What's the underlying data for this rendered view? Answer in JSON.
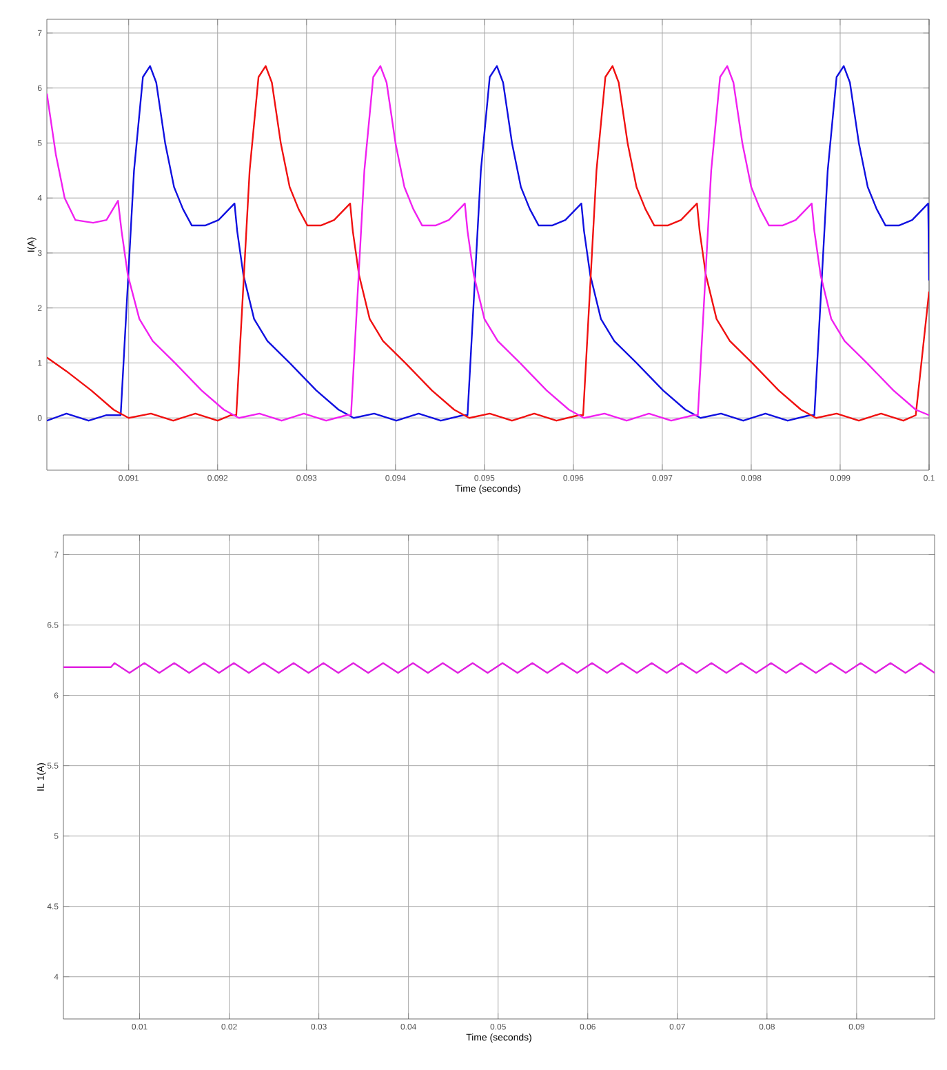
{
  "chart_data": [
    {
      "type": "line",
      "xlabel": "Time (seconds)",
      "ylabel": "I(A)",
      "xlim": [
        0.09008,
        0.1
      ],
      "ylim": [
        -0.95,
        7.25
      ],
      "xticks": [
        0.091,
        0.092,
        0.093,
        0.094,
        0.095,
        0.096,
        0.097,
        0.098,
        0.099,
        0.1
      ],
      "yticks": [
        0,
        1,
        2,
        3,
        4,
        5,
        6,
        7
      ],
      "grid": true,
      "series": [
        {
          "color": "#1010e0",
          "x": [
            0.09008,
            0.0903,
            0.09055,
            0.09075,
            0.09091,
            0.09106,
            0.09116,
            0.09124,
            0.09131,
            0.09141,
            0.09151,
            0.09161,
            0.09171,
            0.09186,
            0.09201,
            0.09219,
            0.09222,
            0.09229,
            0.09241,
            0.09256,
            0.09281,
            0.09311,
            0.09336,
            0.09353,
            0.09376,
            0.09401,
            0.09426,
            0.09451,
            0.09476,
            0.09481,
            0.09496,
            0.09506,
            0.09514,
            0.09521,
            0.09531,
            0.09541,
            0.09551,
            0.09561,
            0.09576,
            0.09591,
            0.09609,
            0.09612,
            0.09619,
            0.09631,
            0.09646,
            0.09671,
            0.09701,
            0.09726,
            0.09743,
            0.09766,
            0.09791,
            0.09816,
            0.09841,
            0.09866,
            0.09871,
            0.09886,
            0.09896,
            0.09904,
            0.09911,
            0.09921,
            0.09931,
            0.09941,
            0.09951,
            0.09966,
            0.09981,
            0.09999,
            0.1
          ],
          "values": [
            -0.05,
            0.08,
            -0.05,
            0.05,
            0.05,
            4.5,
            6.2,
            6.4,
            6.1,
            5.0,
            4.2,
            3.8,
            3.5,
            3.5,
            3.6,
            3.9,
            3.4,
            2.6,
            1.8,
            1.4,
            1.0,
            0.5,
            0.15,
            0.0,
            0.08,
            -0.05,
            0.08,
            -0.05,
            0.05,
            0.05,
            4.5,
            6.2,
            6.4,
            6.1,
            5.0,
            4.2,
            3.8,
            3.5,
            3.5,
            3.6,
            3.9,
            3.4,
            2.6,
            1.8,
            1.4,
            1.0,
            0.5,
            0.15,
            0.0,
            0.08,
            -0.05,
            0.08,
            -0.05,
            0.05,
            0.05,
            4.5,
            6.2,
            6.4,
            6.1,
            5.0,
            4.2,
            3.8,
            3.5,
            3.5,
            3.6,
            3.9,
            2.5
          ]
        },
        {
          "color": "#f01010",
          "x": [
            0.09008,
            0.0903,
            0.09058,
            0.09083,
            0.091,
            0.09125,
            0.0915,
            0.09175,
            0.092,
            0.09215,
            0.09221,
            0.09236,
            0.09246,
            0.09254,
            0.09261,
            0.09271,
            0.09281,
            0.09291,
            0.09301,
            0.09316,
            0.09331,
            0.09349,
            0.09352,
            0.09359,
            0.09371,
            0.09386,
            0.09411,
            0.09441,
            0.09466,
            0.09483,
            0.09506,
            0.09531,
            0.09556,
            0.09581,
            0.09606,
            0.09611,
            0.09626,
            0.09636,
            0.09644,
            0.09651,
            0.09661,
            0.09671,
            0.09681,
            0.09691,
            0.09706,
            0.09721,
            0.09739,
            0.09742,
            0.09749,
            0.09761,
            0.09776,
            0.09801,
            0.09831,
            0.09856,
            0.09873,
            0.09896,
            0.09921,
            0.09946,
            0.09971,
            0.09985,
            0.1
          ],
          "values": [
            1.1,
            0.85,
            0.5,
            0.15,
            0.0,
            0.08,
            -0.05,
            0.08,
            -0.05,
            0.05,
            0.05,
            4.5,
            6.2,
            6.4,
            6.1,
            5.0,
            4.2,
            3.8,
            3.5,
            3.5,
            3.6,
            3.9,
            3.4,
            2.6,
            1.8,
            1.4,
            1.0,
            0.5,
            0.15,
            0.0,
            0.08,
            -0.05,
            0.08,
            -0.05,
            0.05,
            0.05,
            4.5,
            6.2,
            6.4,
            6.1,
            5.0,
            4.2,
            3.8,
            3.5,
            3.5,
            3.6,
            3.9,
            3.4,
            2.6,
            1.8,
            1.4,
            1.0,
            0.5,
            0.15,
            0.0,
            0.08,
            -0.05,
            0.08,
            -0.05,
            0.05,
            2.3
          ]
        },
        {
          "color": "#f020f0",
          "x": [
            0.09008,
            0.09018,
            0.09028,
            0.0904,
            0.0906,
            0.09075,
            0.09088,
            0.09092,
            0.09099,
            0.09112,
            0.09127,
            0.09152,
            0.09182,
            0.09207,
            0.09224,
            0.09247,
            0.09272,
            0.09297,
            0.09322,
            0.09345,
            0.0935,
            0.09365,
            0.09375,
            0.09383,
            0.0939,
            0.094,
            0.0941,
            0.0942,
            0.0943,
            0.09445,
            0.0946,
            0.09478,
            0.09481,
            0.09488,
            0.095,
            0.09515,
            0.0954,
            0.0957,
            0.09595,
            0.09612,
            0.09635,
            0.0966,
            0.09685,
            0.0971,
            0.09735,
            0.0974,
            0.09755,
            0.09765,
            0.09773,
            0.0978,
            0.0979,
            0.098,
            0.0981,
            0.0982,
            0.09835,
            0.0985,
            0.09868,
            0.09871,
            0.09878,
            0.0989,
            0.09905,
            0.0993,
            0.0996,
            0.09985,
            0.1
          ],
          "values": [
            5.9,
            4.8,
            4.0,
            3.6,
            3.55,
            3.6,
            3.95,
            3.4,
            2.6,
            1.8,
            1.4,
            1.0,
            0.5,
            0.15,
            0.0,
            0.08,
            -0.05,
            0.08,
            -0.05,
            0.05,
            0.05,
            4.5,
            6.2,
            6.4,
            6.1,
            5.0,
            4.2,
            3.8,
            3.5,
            3.5,
            3.6,
            3.9,
            3.4,
            2.6,
            1.8,
            1.4,
            1.0,
            0.5,
            0.15,
            0.0,
            0.08,
            -0.05,
            0.08,
            -0.05,
            0.05,
            0.05,
            4.5,
            6.2,
            6.4,
            6.1,
            5.0,
            4.2,
            3.8,
            3.5,
            3.5,
            3.6,
            3.9,
            3.4,
            2.6,
            1.8,
            1.4,
            1.0,
            0.5,
            0.15,
            0.05
          ]
        }
      ]
    },
    {
      "type": "line",
      "xlabel": "Time (seconds)",
      "ylabel": "IL 1(A)",
      "xlim": [
        0.0015,
        0.0987
      ],
      "ylim": [
        3.7,
        7.14
      ],
      "xticks": [
        0.01,
        0.02,
        0.03,
        0.04,
        0.05,
        0.06,
        0.07,
        0.08,
        0.09
      ],
      "yticks": [
        4,
        4.5,
        5,
        5.5,
        6,
        6.5,
        7
      ],
      "grid": true,
      "series": [
        {
          "color": "#e020e0",
          "x": [
            0.0015,
            0.0068,
            0.0072,
            0.00887,
            0.01053,
            0.0122,
            0.01386,
            0.01553,
            0.01719,
            0.01886,
            0.02052,
            0.02219,
            0.02385,
            0.02552,
            0.02718,
            0.02885,
            0.03051,
            0.03218,
            0.03384,
            0.03551,
            0.03717,
            0.03884,
            0.0405,
            0.04217,
            0.04383,
            0.0455,
            0.04716,
            0.04883,
            0.05049,
            0.05216,
            0.05382,
            0.05549,
            0.05715,
            0.05882,
            0.06048,
            0.06215,
            0.06381,
            0.06548,
            0.06714,
            0.06881,
            0.07047,
            0.07214,
            0.0738,
            0.07547,
            0.07713,
            0.0788,
            0.08046,
            0.08213,
            0.08379,
            0.08546,
            0.08712,
            0.08879,
            0.09045,
            0.09212,
            0.09378,
            0.09545,
            0.09711,
            0.0987
          ],
          "values": [
            6.2,
            6.2,
            6.23,
            6.16,
            6.23,
            6.16,
            6.23,
            6.16,
            6.23,
            6.16,
            6.23,
            6.16,
            6.23,
            6.16,
            6.23,
            6.16,
            6.23,
            6.16,
            6.23,
            6.16,
            6.23,
            6.16,
            6.23,
            6.16,
            6.23,
            6.16,
            6.23,
            6.16,
            6.23,
            6.16,
            6.23,
            6.16,
            6.23,
            6.16,
            6.23,
            6.16,
            6.23,
            6.16,
            6.23,
            6.16,
            6.23,
            6.16,
            6.23,
            6.16,
            6.23,
            6.16,
            6.23,
            6.16,
            6.23,
            6.16,
            6.23,
            6.16,
            6.23,
            6.16,
            6.23,
            6.16,
            6.23,
            6.16
          ]
        }
      ]
    }
  ]
}
